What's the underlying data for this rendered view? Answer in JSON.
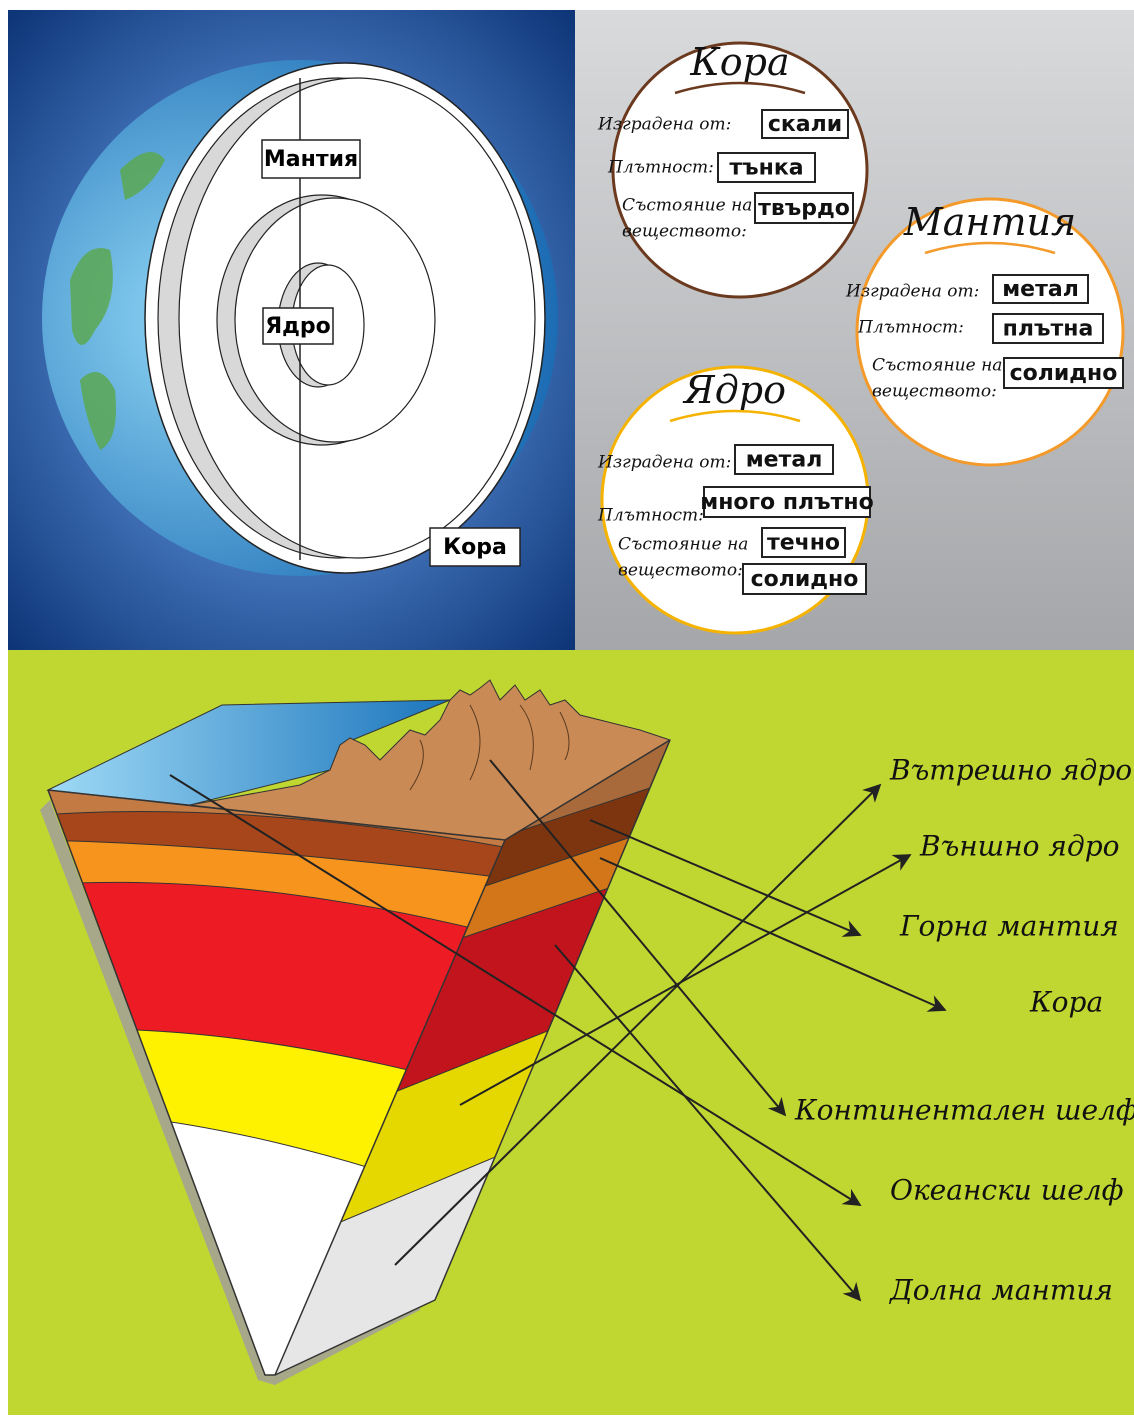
{
  "earth": {
    "mantle": "Мантия",
    "core": "Ядро",
    "crust": "Кора"
  },
  "cards": [
    {
      "title": "Кора",
      "rows": [
        {
          "label": [
            "Изградена от:"
          ],
          "answers": [
            "скали"
          ]
        },
        {
          "label": [
            "Плътност:"
          ],
          "answers": [
            "тънка"
          ]
        },
        {
          "label": [
            "Състояние на",
            "веществото:"
          ],
          "answers": [
            "твърдо"
          ]
        }
      ]
    },
    {
      "title": "Мантия",
      "rows": [
        {
          "label": [
            "Изградена от:"
          ],
          "answers": [
            "метал"
          ]
        },
        {
          "label": [
            "Плътност:"
          ],
          "answers": [
            "плътна"
          ]
        },
        {
          "label": [
            "Състояние на",
            "веществото:"
          ],
          "answers": [
            "солидно"
          ]
        }
      ]
    },
    {
      "title": "Ядро",
      "rows": [
        {
          "label": [
            "Изградена от:"
          ],
          "answers": [
            "метал"
          ]
        },
        {
          "label": [
            "Плътност:"
          ],
          "answers": [
            "много плътно"
          ]
        },
        {
          "label": [
            "Състояние на",
            "веществото:"
          ],
          "answers": [
            "течно",
            "солидно"
          ]
        }
      ]
    }
  ],
  "labels": [
    "Вътрешно ядро",
    "Външно ядро",
    "Горна мантия",
    "Кора",
    "Континентален шелф",
    "Океански шелф",
    "Долна мантия"
  ]
}
